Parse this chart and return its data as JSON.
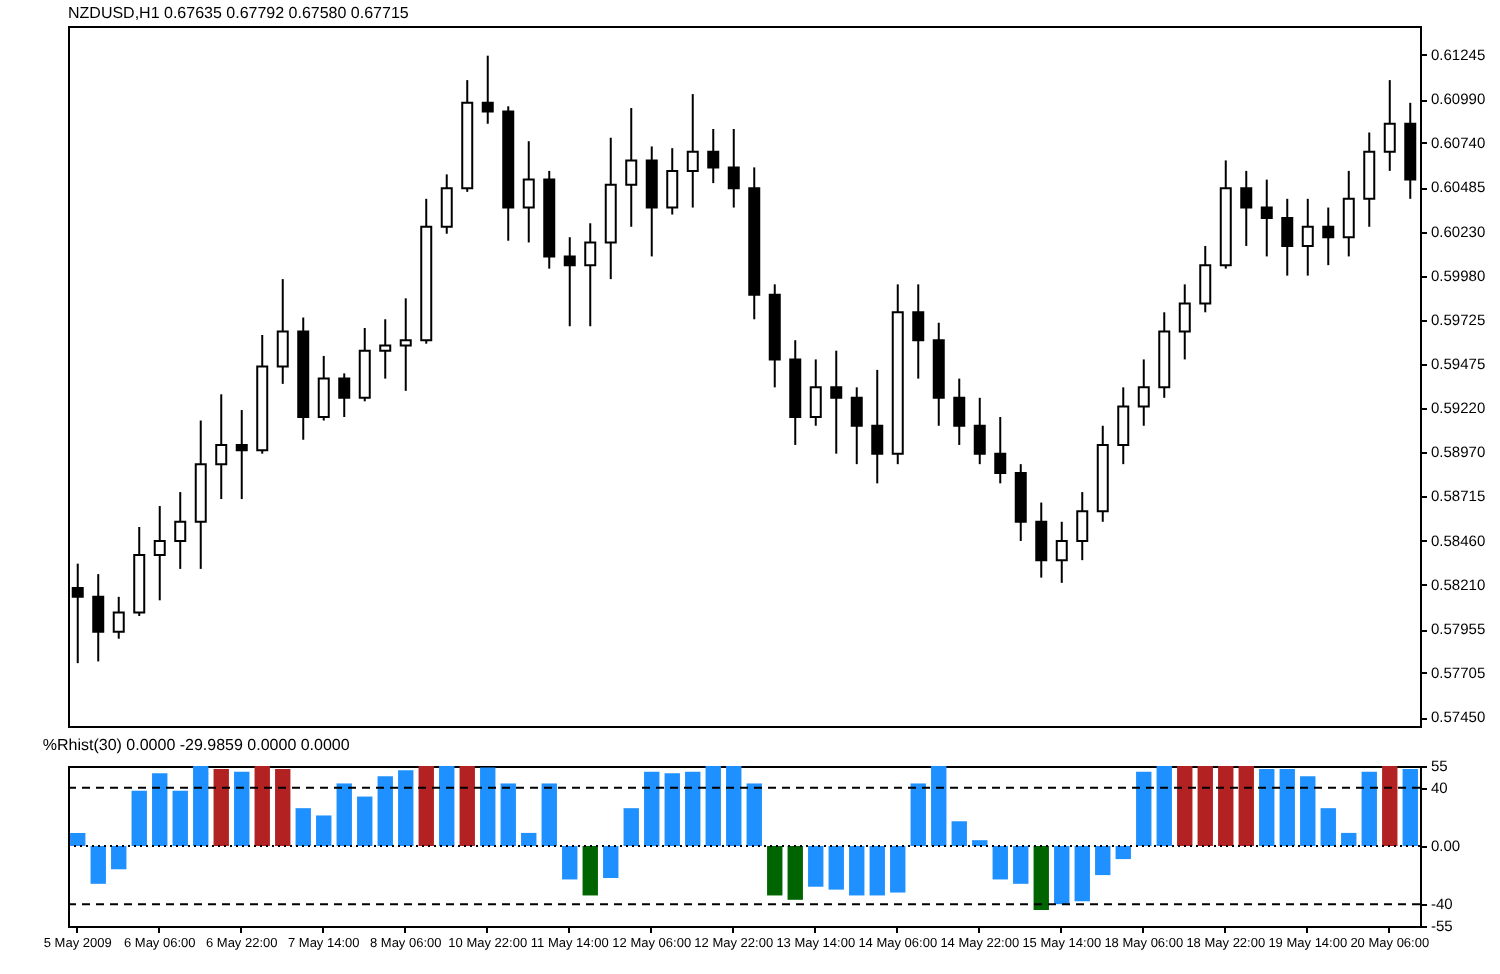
{
  "chart_data": [
    {
      "type": "candlestick",
      "title": "NZDUSD,H1  0.67635 0.67792 0.67580 0.67715",
      "color": "#000000",
      "tick_labels": "y",
      "categories": [
        null,
        null,
        null,
        null,
        null,
        null,
        null,
        null,
        null,
        null,
        null,
        null,
        null,
        null,
        null,
        null,
        null,
        null,
        null,
        null,
        null,
        null,
        null,
        null,
        null,
        null,
        null,
        null,
        null,
        null,
        null,
        null,
        null,
        null,
        null,
        null,
        null,
        null,
        null,
        null,
        null,
        null,
        null,
        null,
        null,
        null,
        null,
        null,
        null,
        null,
        null,
        null,
        null,
        null,
        null,
        null,
        null,
        null,
        null,
        null,
        null,
        null,
        null,
        null,
        null,
        null
      ],
      "ohlc": [
        [
          0.5819,
          0.5833,
          0.5776,
          0.5814
        ],
        [
          0.5814,
          0.5827,
          0.5777,
          0.5794
        ],
        [
          0.5794,
          0.5814,
          0.579,
          0.5805
        ],
        [
          0.5805,
          0.5854,
          0.5803,
          0.5838
        ],
        [
          0.5838,
          0.5866,
          0.5812,
          0.5846
        ],
        [
          0.5846,
          0.5874,
          0.583,
          0.5857
        ],
        [
          0.5857,
          0.5915,
          0.583,
          0.589
        ],
        [
          0.589,
          0.593,
          0.587,
          0.5901
        ],
        [
          0.5901,
          0.5921,
          0.587,
          0.5898
        ],
        [
          0.5898,
          0.5964,
          0.5896,
          0.5946
        ],
        [
          0.5946,
          0.5996,
          0.5936,
          0.5966
        ],
        [
          0.5966,
          0.5974,
          0.5904,
          0.5917
        ],
        [
          0.5917,
          0.5952,
          0.5915,
          0.5939
        ],
        [
          0.5939,
          0.5942,
          0.5917,
          0.5928
        ],
        [
          0.5928,
          0.5968,
          0.5926,
          0.5955
        ],
        [
          0.5955,
          0.5973,
          0.5939,
          0.5958
        ],
        [
          0.5958,
          0.5985,
          0.5932,
          0.5961
        ],
        [
          0.5961,
          0.6042,
          0.5959,
          0.6026
        ],
        [
          0.6026,
          0.6056,
          0.6022,
          0.6048
        ],
        [
          0.6048,
          0.611,
          0.6046,
          0.6097
        ],
        [
          0.6097,
          0.6124,
          0.6085,
          0.6092
        ],
        [
          0.6092,
          0.6095,
          0.6018,
          0.6037
        ],
        [
          0.6037,
          0.6075,
          0.6017,
          0.6053
        ],
        [
          0.6053,
          0.6058,
          0.6002,
          0.6009
        ],
        [
          0.6009,
          0.602,
          0.5969,
          0.6004
        ],
        [
          0.6004,
          0.6028,
          0.5969,
          0.6017
        ],
        [
          0.6017,
          0.6077,
          0.5996,
          0.605
        ],
        [
          0.605,
          0.6094,
          0.6026,
          0.6064
        ],
        [
          0.6064,
          0.6072,
          0.6009,
          0.6037
        ],
        [
          0.6037,
          0.6071,
          0.6033,
          0.6058
        ],
        [
          0.6058,
          0.6102,
          0.6037,
          0.6069
        ],
        [
          0.6069,
          0.6082,
          0.6051,
          0.606
        ],
        [
          0.606,
          0.6082,
          0.6037,
          0.6048
        ],
        [
          0.6048,
          0.606,
          0.5973,
          0.5987
        ],
        [
          0.5987,
          0.5993,
          0.5934,
          0.595
        ],
        [
          0.595,
          0.5961,
          0.5901,
          0.5917
        ],
        [
          0.5917,
          0.595,
          0.5912,
          0.5934
        ],
        [
          0.5934,
          0.5955,
          0.5896,
          0.5928
        ],
        [
          0.5928,
          0.5934,
          0.589,
          0.5912
        ],
        [
          0.5912,
          0.5944,
          0.5879,
          0.5896
        ],
        [
          0.5896,
          0.5993,
          0.589,
          0.5977
        ],
        [
          0.5977,
          0.5993,
          0.5939,
          0.5961
        ],
        [
          0.5961,
          0.5971,
          0.5912,
          0.5928
        ],
        [
          0.5928,
          0.5939,
          0.5901,
          0.5912
        ],
        [
          0.5912,
          0.5928,
          0.589,
          0.5896
        ],
        [
          0.5896,
          0.5917,
          0.5879,
          0.5885
        ],
        [
          0.5885,
          0.589,
          0.5846,
          0.5857
        ],
        [
          0.5857,
          0.5868,
          0.5825,
          0.5835
        ],
        [
          0.5835,
          0.5857,
          0.5822,
          0.5846
        ],
        [
          0.5846,
          0.5874,
          0.5835,
          0.5863
        ],
        [
          0.5863,
          0.5912,
          0.5857,
          0.5901
        ],
        [
          0.5901,
          0.5934,
          0.589,
          0.5923
        ],
        [
          0.5923,
          0.595,
          0.5912,
          0.5934
        ],
        [
          0.5934,
          0.5977,
          0.5928,
          0.5966
        ],
        [
          0.5966,
          0.5993,
          0.595,
          0.5982
        ],
        [
          0.5982,
          0.6015,
          0.5977,
          0.6004
        ],
        [
          0.6004,
          0.6064,
          0.6002,
          0.6048
        ],
        [
          0.6048,
          0.6058,
          0.6015,
          0.6037
        ],
        [
          0.6037,
          0.6053,
          0.6009,
          0.6031
        ],
        [
          0.6031,
          0.6042,
          0.5998,
          0.6015
        ],
        [
          0.6015,
          0.6042,
          0.5998,
          0.6026
        ],
        [
          0.6026,
          0.6037,
          0.6004,
          0.602
        ],
        [
          0.602,
          0.6058,
          0.6009,
          0.6042
        ],
        [
          0.6042,
          0.608,
          0.6026,
          0.6069
        ],
        [
          0.6069,
          0.611,
          0.6058,
          0.6085
        ],
        [
          0.6085,
          0.6097,
          0.6042,
          0.6053
        ]
      ],
      "ylim": [
        0.574,
        0.6141
      ],
      "yticks": [
        0.61245,
        {
          "value": 0.6099,
          "label": "0.60990"
        },
        {
          "value": 0.6074,
          "label": "0.60740"
        },
        0.60485,
        {
          "value": 0.6023,
          "label": "0.60230"
        },
        {
          "value": 0.5998,
          "label": "0.59980"
        },
        0.59725,
        0.59475,
        {
          "value": 0.5922,
          "label": "0.59220"
        },
        {
          "value": 0.5897,
          "label": "0.58970"
        },
        0.58715,
        {
          "value": 0.5846,
          "label": "0.58460"
        },
        {
          "value": 0.5821,
          "label": "0.58210"
        },
        0.57955,
        0.57705,
        {
          "value": 0.5745,
          "label": "0.57450"
        }
      ]
    },
    {
      "type": "bar",
      "title": "%Rhist(30) 0.0000 -29.9859 0.0000 0.0000",
      "categories": [
        "5 May 2009",
        null,
        null,
        null,
        "6 May 06:00",
        null,
        null,
        null,
        "6 May 22:00",
        null,
        null,
        null,
        "7 May 14:00",
        null,
        null,
        null,
        "8 May 06:00",
        null,
        null,
        null,
        "10 May 22:00",
        null,
        null,
        null,
        "11 May 14:00",
        null,
        null,
        null,
        "12 May 06:00",
        null,
        null,
        null,
        "12 May 22:00",
        null,
        null,
        null,
        "13 May 14:00",
        null,
        null,
        null,
        "14 May 06:00",
        null,
        null,
        null,
        "14 May 22:00",
        null,
        null,
        null,
        "15 May 14:00",
        null,
        null,
        null,
        "18 May 06:00",
        null,
        null,
        null,
        "18 May 22:00",
        null,
        null,
        null,
        "19 May 14:00",
        null,
        null,
        null,
        "20 May 06:00",
        null
      ],
      "values": [
        9,
        -26,
        -16,
        38,
        50,
        38,
        55,
        53,
        51,
        55,
        53,
        26,
        21,
        43,
        34,
        48,
        52,
        55,
        55,
        55,
        54,
        43,
        9,
        43,
        -23,
        -34,
        -22,
        26,
        51,
        50,
        51,
        55,
        55,
        43,
        -34,
        -37,
        -28,
        -30,
        -34,
        -34,
        -32,
        43,
        55,
        17,
        4,
        -23,
        -26,
        -44,
        -40,
        -38,
        -20,
        -9,
        51,
        55,
        55,
        55,
        55,
        55,
        53,
        53,
        48,
        26,
        9,
        51,
        55,
        53
      ],
      "colors": [
        "#1e90ff",
        "#1e90ff",
        "#1e90ff",
        "#1e90ff",
        "#1e90ff",
        "#1e90ff",
        "#1e90ff",
        "#b22222",
        "#1e90ff",
        "#b22222",
        "#b22222",
        "#1e90ff",
        "#1e90ff",
        "#1e90ff",
        "#1e90ff",
        "#1e90ff",
        "#1e90ff",
        "#b22222",
        "#1e90ff",
        "#b22222",
        "#1e90ff",
        "#1e90ff",
        "#1e90ff",
        "#1e90ff",
        "#1e90ff",
        "#006400",
        "#1e90ff",
        "#1e90ff",
        "#1e90ff",
        "#1e90ff",
        "#1e90ff",
        "#1e90ff",
        "#1e90ff",
        "#1e90ff",
        "#006400",
        "#006400",
        "#1e90ff",
        "#1e90ff",
        "#1e90ff",
        "#1e90ff",
        "#1e90ff",
        "#1e90ff",
        "#1e90ff",
        "#1e90ff",
        "#1e90ff",
        "#1e90ff",
        "#1e90ff",
        "#006400",
        "#1e90ff",
        "#1e90ff",
        "#1e90ff",
        "#1e90ff",
        "#1e90ff",
        "#1e90ff",
        "#b22222",
        "#b22222",
        "#b22222",
        "#b22222",
        "#1e90ff",
        "#1e90ff",
        "#1e90ff",
        "#1e90ff",
        "#1e90ff",
        "#1e90ff",
        "#b22222",
        "#1e90ff"
      ],
      "ylim": [
        -55,
        55
      ],
      "yticks": [
        55,
        40,
        {
          "value": 0,
          "label": "0.00"
        },
        -40,
        -55
      ],
      "ref_lines": [
        {
          "axis": "y",
          "value": 40,
          "line_style": "dashed",
          "color": "#000000"
        },
        {
          "axis": "y",
          "value": 0,
          "line_style": "dotted",
          "color": "#000000"
        },
        {
          "axis": "y",
          "value": -40,
          "line_style": "dashed",
          "color": "#000000"
        }
      ]
    }
  ]
}
